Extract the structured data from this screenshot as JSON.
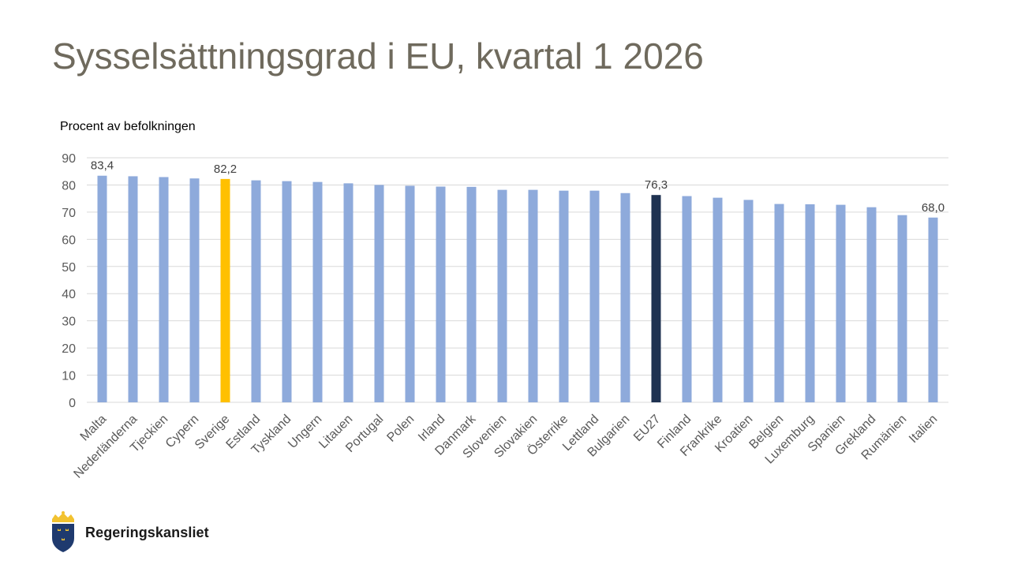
{
  "slide": {
    "title": "Sysselsättningsgrad i EU, kvartal 1 2026",
    "brand": "Regeringskansliet"
  },
  "colors": {
    "default_bar": "#8eaadb",
    "highlight_sverige": "#ffc000",
    "highlight_eu27": "#1f3251",
    "title": "#6f6a5d",
    "grid": "#d9d9d9",
    "logo_blue": "#1f3a6e",
    "logo_gold": "#f2c230"
  },
  "chart_data": {
    "type": "bar",
    "title": "",
    "ylabel": "Procent av befolkningen",
    "xlabel": "",
    "ylim": [
      0,
      90
    ],
    "yticks": [
      0,
      10,
      20,
      30,
      40,
      50,
      60,
      70,
      80,
      90
    ],
    "grid": true,
    "legend": "none",
    "categories": [
      "Malta",
      "Nederländerna",
      "Tjeckien",
      "Cypern",
      "Sverige",
      "Estland",
      "Tyskland",
      "Ungern",
      "Litauen",
      "Portugal",
      "Polen",
      "Irland",
      "Danmark",
      "Slovenien",
      "Slovakien",
      "Österrike",
      "Lettland",
      "Bulgarien",
      "EU27",
      "Finland",
      "Frankrike",
      "Kroatien",
      "Belgien",
      "Luxemburg",
      "Spanien",
      "Grekland",
      "Rumänien",
      "Italien"
    ],
    "values": [
      83.4,
      83.2,
      82.9,
      82.4,
      82.2,
      81.7,
      81.4,
      81.1,
      80.6,
      80.0,
      79.7,
      79.4,
      79.3,
      78.2,
      78.2,
      77.9,
      77.9,
      77.0,
      76.3,
      75.9,
      75.3,
      74.5,
      73.0,
      72.9,
      72.7,
      71.8,
      68.9,
      68.0
    ],
    "data_labels": [
      {
        "category": "Malta",
        "text": "83,4"
      },
      {
        "category": "Sverige",
        "text": "82,2"
      },
      {
        "category": "EU27",
        "text": "76,3"
      },
      {
        "category": "Italien",
        "text": "68,0"
      }
    ],
    "highlights": [
      {
        "category": "Sverige",
        "color": "#ffc000"
      },
      {
        "category": "EU27",
        "color": "#1f3251"
      }
    ]
  }
}
